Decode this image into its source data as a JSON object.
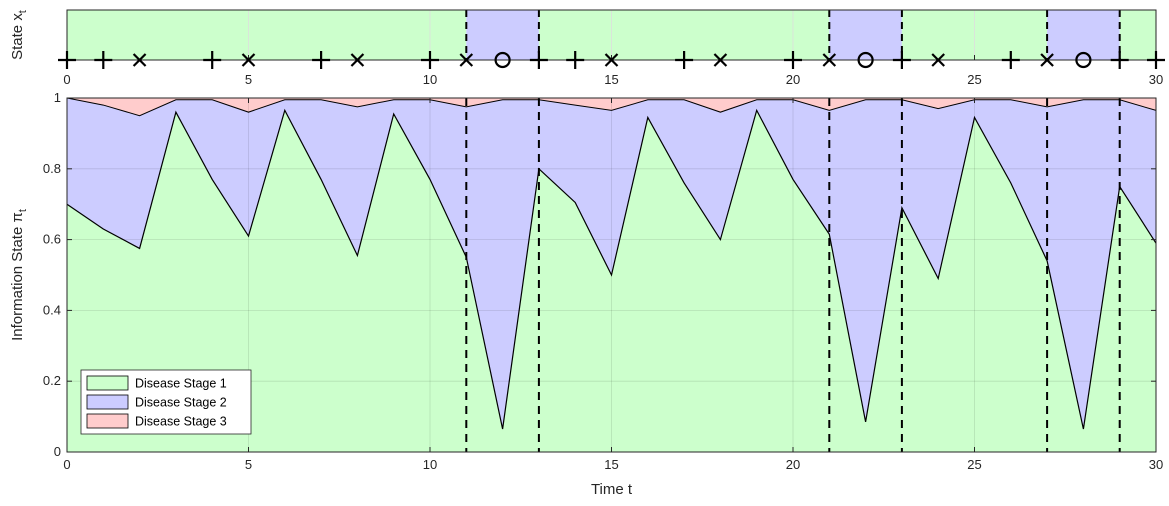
{
  "chart_data": [
    {
      "type": "scatter",
      "ylabel": "State x_t",
      "xlim": [
        0,
        30
      ],
      "xticks": [
        0,
        5,
        10,
        15,
        20,
        25,
        30
      ],
      "background_bands": [
        {
          "from": 0,
          "to": 11,
          "state": 1
        },
        {
          "from": 11,
          "to": 13,
          "state": 2
        },
        {
          "from": 13,
          "to": 21,
          "state": 1
        },
        {
          "from": 21,
          "to": 23,
          "state": 2
        },
        {
          "from": 23,
          "to": 27,
          "state": 1
        },
        {
          "from": 27,
          "to": 29,
          "state": 2
        },
        {
          "from": 29,
          "to": 30,
          "state": 1
        }
      ],
      "markers": [
        {
          "t": 0,
          "symbol": "+"
        },
        {
          "t": 1,
          "symbol": "+"
        },
        {
          "t": 2,
          "symbol": "×"
        },
        {
          "t": 4,
          "symbol": "+"
        },
        {
          "t": 5,
          "symbol": "×"
        },
        {
          "t": 7,
          "symbol": "+"
        },
        {
          "t": 8,
          "symbol": "×"
        },
        {
          "t": 10,
          "symbol": "+"
        },
        {
          "t": 11,
          "symbol": "×"
        },
        {
          "t": 12,
          "symbol": "o"
        },
        {
          "t": 13,
          "symbol": "+"
        },
        {
          "t": 14,
          "symbol": "+"
        },
        {
          "t": 15,
          "symbol": "×"
        },
        {
          "t": 17,
          "symbol": "+"
        },
        {
          "t": 18,
          "symbol": "×"
        },
        {
          "t": 20,
          "symbol": "+"
        },
        {
          "t": 21,
          "symbol": "×"
        },
        {
          "t": 22,
          "symbol": "o"
        },
        {
          "t": 23,
          "symbol": "+"
        },
        {
          "t": 24,
          "symbol": "×"
        },
        {
          "t": 26,
          "symbol": "+"
        },
        {
          "t": 27,
          "symbol": "×"
        },
        {
          "t": 28,
          "symbol": "o"
        },
        {
          "t": 29,
          "symbol": "+"
        },
        {
          "t": 30,
          "symbol": "+"
        }
      ],
      "grid": true
    },
    {
      "type": "area",
      "xlabel": "Time t",
      "ylabel": "Information State π_t",
      "xlim": [
        0,
        30
      ],
      "ylim": [
        0,
        1
      ],
      "xticks": [
        0,
        5,
        10,
        15,
        20,
        25,
        30
      ],
      "yticks": [
        0,
        0.2,
        0.4,
        0.6,
        0.8,
        1
      ],
      "x": [
        0,
        1,
        2,
        3,
        4,
        5,
        6,
        7,
        8,
        9,
        10,
        11,
        12,
        13,
        14,
        15,
        16,
        17,
        18,
        19,
        20,
        21,
        22,
        23,
        24,
        25,
        26,
        27,
        28,
        29,
        30
      ],
      "series": [
        {
          "name": "Disease Stage 1",
          "color": "#ccffcc",
          "values": [
            0.7,
            0.63,
            0.575,
            0.96,
            0.77,
            0.61,
            0.965,
            0.77,
            0.555,
            0.955,
            0.77,
            0.55,
            0.065,
            0.8,
            0.705,
            0.5,
            0.945,
            0.76,
            0.6,
            0.965,
            0.77,
            0.615,
            0.085,
            0.69,
            0.49,
            0.945,
            0.76,
            0.54,
            0.065,
            0.75,
            0.59
          ]
        },
        {
          "name": "Disease Stage 2",
          "color": "#ccccff",
          "values": [
            0.3,
            0.35,
            0.375,
            0.035,
            0.225,
            0.35,
            0.03,
            0.225,
            0.42,
            0.04,
            0.225,
            0.425,
            0.93,
            0.195,
            0.275,
            0.465,
            0.05,
            0.235,
            0.36,
            0.03,
            0.225,
            0.35,
            0.91,
            0.305,
            0.48,
            0.05,
            0.235,
            0.435,
            0.93,
            0.245,
            0.375
          ]
        },
        {
          "name": "Disease Stage 3",
          "color": "#ffcccc",
          "values": [
            0.0,
            0.02,
            0.05,
            0.005,
            0.005,
            0.04,
            0.005,
            0.005,
            0.025,
            0.005,
            0.005,
            0.025,
            0.005,
            0.005,
            0.02,
            0.035,
            0.005,
            0.005,
            0.04,
            0.005,
            0.005,
            0.035,
            0.005,
            0.005,
            0.03,
            0.005,
            0.005,
            0.025,
            0.005,
            0.005,
            0.035
          ]
        }
      ],
      "vertical_dashed_lines": [
        11,
        13,
        21,
        23,
        27,
        29
      ],
      "legend": "bottom-left",
      "grid": true
    }
  ],
  "legend_labels": [
    "Disease Stage 1",
    "Disease Stage 2",
    "Disease Stage 3"
  ],
  "colors": {
    "stage1": "#ccffcc",
    "stage2": "#ccccff",
    "stage3": "#ffcccc",
    "grid": "#dddddd",
    "axis": "#262626"
  }
}
